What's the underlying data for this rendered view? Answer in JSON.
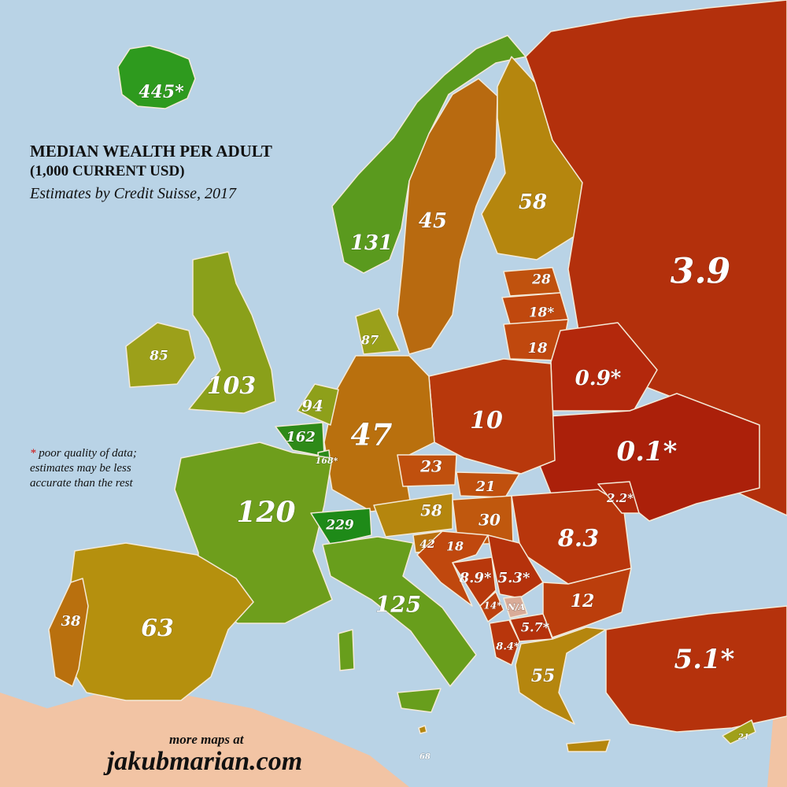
{
  "title": {
    "line1": "MEDIAN WEALTH PER ADULT",
    "line2": "(1,000 CURRENT USD)",
    "subtitle": "Estimates by Credit Suisse, 2017"
  },
  "note": {
    "star": "*",
    "text": " poor quality of data; estimates may be less accurate than the rest"
  },
  "credit": {
    "line1": "more maps at",
    "site": "jakubmarian.com"
  },
  "colors": {
    "sea": "#b9d3e6",
    "outside": "#f2c4a4",
    "border": "#f4ead8"
  },
  "countries": {
    "iceland": {
      "value": "445*",
      "color": "#2e9a1e"
    },
    "norway": {
      "value": "131",
      "color": "#5a9a1e"
    },
    "sweden": {
      "value": "45",
      "color": "#b86a10"
    },
    "finland": {
      "value": "58",
      "color": "#b5860e"
    },
    "russia": {
      "value": "3.9",
      "color": "#b3300c"
    },
    "estonia": {
      "value": "28",
      "color": "#c0520e"
    },
    "latvia": {
      "value": "18*",
      "color": "#c0480e"
    },
    "lithuania": {
      "value": "18",
      "color": "#c0480e"
    },
    "belarus": {
      "value": "0.9*",
      "color": "#b3280c"
    },
    "ukraine": {
      "value": "0.1*",
      "color": "#ab200a"
    },
    "poland": {
      "value": "10",
      "color": "#b8380c"
    },
    "germany": {
      "value": "47",
      "color": "#b9700e"
    },
    "denmark": {
      "value": "87",
      "color": "#9aa01a"
    },
    "netherlands": {
      "value": "94",
      "color": "#8ea01a"
    },
    "belgium": {
      "value": "162",
      "color": "#2e8a18"
    },
    "luxembourg": {
      "value": "168*",
      "color": "#2a8a18"
    },
    "uk": {
      "value": "103",
      "color": "#8aa01a"
    },
    "ireland": {
      "value": "85",
      "color": "#9ca01a"
    },
    "france": {
      "value": "120",
      "color": "#6e9e1c"
    },
    "switzerland": {
      "value": "229",
      "color": "#1e8a18"
    },
    "austria": {
      "value": "58",
      "color": "#b5860e"
    },
    "czechia": {
      "value": "23",
      "color": "#c0500e"
    },
    "slovakia": {
      "value": "21",
      "color": "#c0500e"
    },
    "hungary": {
      "value": "30",
      "color": "#c0580e"
    },
    "romania": {
      "value": "8.3",
      "color": "#b8360c"
    },
    "moldova": {
      "value": "2.2*",
      "color": "#b02a0c"
    },
    "italy": {
      "value": "125",
      "color": "#689e1c"
    },
    "slovenia": {
      "value": "42",
      "color": "#b9700e"
    },
    "croatia": {
      "value": "18",
      "color": "#c0480e"
    },
    "bosnia": {
      "value": "8.9*",
      "color": "#b8380c"
    },
    "serbia": {
      "value": "5.3*",
      "color": "#b5320c"
    },
    "montenegro": {
      "value": "14*",
      "color": "#bc400e"
    },
    "kosovo": {
      "value": "N/A",
      "color": "#d9ab98"
    },
    "macedonia": {
      "value": "5.7*",
      "color": "#b5320c"
    },
    "albania": {
      "value": "8.4*",
      "color": "#b8360c"
    },
    "bulgaria": {
      "value": "12",
      "color": "#bb3e0c"
    },
    "greece": {
      "value": "55",
      "color": "#b5860e"
    },
    "turkey": {
      "value": "5.1*",
      "color": "#b5320c"
    },
    "cyprus": {
      "value": "21",
      "color": "#a0a01a"
    },
    "malta": {
      "value": "68",
      "color": "#b5860e"
    },
    "spain": {
      "value": "63",
      "color": "#b5900e"
    },
    "portugal": {
      "value": "38",
      "color": "#b9700e"
    }
  }
}
